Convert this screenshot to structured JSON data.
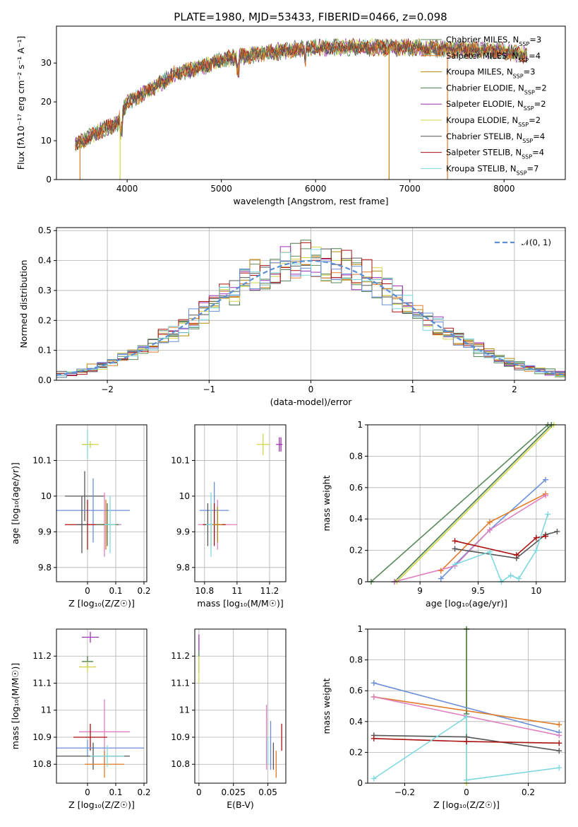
{
  "title": "PLATE=1980, MJD=53433, FIBERID=0466, z=0.098",
  "colors": [
    "#5a8a5a",
    "#e07b28",
    "#b8860b",
    "#4a7a4a",
    "#9b30b0",
    "#d4d44a",
    "#555555",
    "#aa1111",
    "#7fd8e0",
    "#6a8fd8",
    "#e080c0"
  ],
  "chart_data": [
    {
      "id": "spectrum",
      "type": "line",
      "xlabel": "wavelength [Angstrom, rest frame]",
      "ylabel": "Flux [fλ10⁻¹⁷ erg cm⁻² s⁻¹ A⁻¹]",
      "xlim": [
        3250,
        8650
      ],
      "ylim": [
        0,
        39.5
      ],
      "xticks": [
        4000,
        5000,
        6000,
        7000,
        8000
      ],
      "yticks": [
        0,
        10,
        20,
        30
      ],
      "legend_position": "upper-right",
      "legend": [
        "Chabrier MILES, N_SSP=3",
        "Salpeter MILES, N_SSP=4",
        "Kroupa MILES, N_SSP=3",
        "Chabrier ELODIE, N_SSP=2",
        "Salpeter ELODIE, N_SSP=2",
        "Kroupa ELODIE, N_SSP=2",
        "Chabrier STELIB, N_SSP=4",
        "Salpeter STELIB, N_SSP=4",
        "Kroupa STELIB, N_SSP=7"
      ],
      "continuum": [
        [
          3450,
          9
        ],
        [
          3600,
          11
        ],
        [
          3750,
          13
        ],
        [
          3900,
          14.5
        ],
        [
          4000,
          20
        ],
        [
          4100,
          21
        ],
        [
          4300,
          24
        ],
        [
          4500,
          27
        ],
        [
          4800,
          29
        ],
        [
          5000,
          31
        ],
        [
          5300,
          32
        ],
        [
          5600,
          33
        ],
        [
          6000,
          34
        ],
        [
          6500,
          34
        ],
        [
          7000,
          34
        ],
        [
          7500,
          33.5
        ],
        [
          8000,
          33
        ],
        [
          8250,
          32
        ]
      ]
    },
    {
      "id": "residuals",
      "type": "histogram",
      "xlabel": "(data-model)/error",
      "ylabel": "Normed distribution",
      "xlim": [
        -2.5,
        2.5
      ],
      "ylim": [
        0,
        0.51
      ],
      "xticks": [
        -2,
        -1,
        0,
        1,
        2
      ],
      "yticks": [
        0.0,
        0.1,
        0.2,
        0.3,
        0.4,
        0.5
      ],
      "legend": [
        "𝒩(0, 1)"
      ],
      "legend_position": "upper-right",
      "grid": true,
      "bin_width": 0.1
    },
    {
      "id": "z-age",
      "type": "errorbar",
      "xlabel": "Z [log₁₀(Z/Z☉)]",
      "ylabel": "age  [log₁₀(age/yr)]",
      "xlim": [
        -0.11,
        0.21
      ],
      "ylim": [
        9.76,
        10.2
      ],
      "xticks": [
        0.0,
        0.1,
        0.2
      ],
      "yticks": [
        9.8,
        9.9,
        10.0,
        10.1
      ],
      "grid": true,
      "points": [
        [
          0.0,
          10.145,
          0.02,
          0.04,
          8
        ],
        [
          0.01,
          10.145,
          0.03,
          0.01,
          5
        ],
        [
          -0.01,
          10.0,
          0.07,
          0.07,
          6
        ],
        [
          0.02,
          9.96,
          0.13,
          0.09,
          9
        ],
        [
          0.065,
          9.92,
          0.03,
          0.07,
          1
        ],
        [
          0.06,
          9.92,
          0.06,
          0.09,
          10
        ],
        [
          0.0,
          9.92,
          0.08,
          0.07,
          7
        ],
        [
          0.07,
          9.92,
          0.04,
          0.06,
          3
        ],
        [
          0.08,
          9.92,
          0.02,
          0.08,
          8
        ],
        [
          -0.02,
          9.92,
          0.02,
          0.08,
          6
        ]
      ]
    },
    {
      "id": "mass-age",
      "type": "errorbar",
      "xlabel": "mass [log₁₀(M/M☉)]",
      "ylabel": "",
      "xlim": [
        10.74,
        11.3
      ],
      "ylim": [
        9.76,
        10.2
      ],
      "xticks": [
        10.8,
        11.0,
        11.2
      ],
      "yticks": [
        9.8,
        9.9,
        10.0,
        10.1
      ],
      "grid": true,
      "points": [
        [
          11.16,
          10.145,
          0.04,
          0.03,
          5
        ],
        [
          11.26,
          10.145,
          0.02,
          0.02,
          4
        ],
        [
          11.27,
          10.145,
          0.0,
          0.02,
          4
        ],
        [
          10.86,
          9.96,
          0.09,
          0.08,
          9
        ],
        [
          10.88,
          9.92,
          0.12,
          0.07,
          10
        ],
        [
          10.86,
          9.92,
          0.07,
          0.06,
          7
        ],
        [
          10.84,
          9.92,
          0.04,
          0.06,
          1
        ],
        [
          10.82,
          9.92,
          0.02,
          0.06,
          6
        ],
        [
          10.84,
          9.92,
          0.03,
          0.09,
          8
        ],
        [
          10.88,
          9.92,
          0.03,
          0.05,
          2
        ]
      ]
    },
    {
      "id": "age-massweight",
      "type": "line",
      "xlabel": "age  [log₁₀(age/yr)]",
      "ylabel": "mass weight",
      "xlim": [
        8.55,
        10.25
      ],
      "ylim": [
        0,
        1
      ],
      "grid": true,
      "xticks": [
        9.0,
        9.5,
        10.0
      ],
      "yticks": [
        0.0,
        0.2,
        0.4,
        0.6,
        0.8,
        1.0
      ],
      "series": [
        {
          "color": 0,
          "points": [
            [
              8.58,
              0.0
            ],
            [
              10.1,
              1.0
            ]
          ]
        },
        {
          "color": 5,
          "points": [
            [
              8.8,
              0.0
            ],
            [
              10.15,
              1.0
            ]
          ]
        },
        {
          "color": 3,
          "points": [
            [
              8.78,
              0.0
            ],
            [
              10.13,
              1.0
            ]
          ]
        },
        {
          "color": 9,
          "points": [
            [
              9.18,
              0.02
            ],
            [
              9.6,
              0.33
            ],
            [
              10.08,
              0.65
            ]
          ]
        },
        {
          "color": 1,
          "points": [
            [
              9.18,
              0.07
            ],
            [
              9.6,
              0.38
            ],
            [
              10.08,
              0.56
            ]
          ]
        },
        {
          "color": 10,
          "points": [
            [
              8.78,
              0.0
            ],
            [
              9.3,
              0.1
            ],
            [
              9.6,
              0.33
            ],
            [
              10.08,
              0.55
            ]
          ]
        },
        {
          "color": 6,
          "points": [
            [
              9.3,
              0.21
            ],
            [
              9.83,
              0.15
            ],
            [
              10.08,
              0.3
            ],
            [
              10.18,
              0.32
            ]
          ]
        },
        {
          "color": 7,
          "points": [
            [
              9.3,
              0.26
            ],
            [
              9.83,
              0.17
            ],
            [
              10.0,
              0.28
            ],
            [
              10.08,
              0.29
            ]
          ]
        },
        {
          "color": 8,
          "points": [
            [
              9.3,
              0.11
            ],
            [
              9.6,
              0.19
            ],
            [
              9.7,
              0.0
            ],
            [
              9.78,
              0.04
            ],
            [
              9.85,
              0.02
            ],
            [
              10.0,
              0.2
            ],
            [
              10.1,
              0.43
            ]
          ]
        }
      ]
    },
    {
      "id": "z-mass",
      "type": "errorbar",
      "xlabel": "Z [log₁₀(Z/Z☉)]",
      "ylabel": "mass [log₁₀(M/M☉)]",
      "xlim": [
        -0.11,
        0.21
      ],
      "ylim": [
        10.73,
        11.3
      ],
      "xticks": [
        0.0,
        0.1,
        0.2
      ],
      "yticks": [
        10.8,
        10.9,
        11.0,
        11.1,
        11.2
      ],
      "grid": true,
      "points": [
        [
          0.01,
          11.27,
          0.03,
          0.02,
          4
        ],
        [
          0.0,
          11.18,
          0.02,
          0.02,
          3
        ],
        [
          0.0,
          11.16,
          0.03,
          0.02,
          5
        ],
        [
          0.06,
          10.92,
          0.09,
          0.12,
          10
        ],
        [
          0.01,
          10.9,
          0.06,
          0.05,
          7
        ],
        [
          0.0,
          10.86,
          0.2,
          0.03,
          9
        ],
        [
          0.02,
          10.83,
          0.13,
          0.05,
          6
        ],
        [
          0.06,
          10.8,
          0.07,
          0.05,
          1
        ],
        [
          0.07,
          10.83,
          0.06,
          0.04,
          8
        ]
      ]
    },
    {
      "id": "ebv-mass",
      "type": "errorbar",
      "xlabel": "E(B-V)",
      "ylabel": "",
      "xlim": [
        -0.003,
        0.063
      ],
      "ylim": [
        10.73,
        11.3
      ],
      "xticks": [
        0.0,
        0.025,
        0.05
      ],
      "yticks": [
        10.8,
        10.9,
        11.0,
        11.1,
        11.2
      ],
      "grid": true,
      "points": [
        [
          0.0,
          11.25,
          0.0,
          0.03,
          4
        ],
        [
          0.0,
          11.18,
          0.0,
          0.04,
          3
        ],
        [
          0.0,
          11.15,
          0.0,
          0.05,
          5
        ],
        [
          0.049,
          10.9,
          0.0,
          0.12,
          10
        ],
        [
          0.052,
          10.87,
          0.0,
          0.09,
          9
        ],
        [
          0.054,
          10.83,
          0.0,
          0.05,
          6
        ],
        [
          0.056,
          10.8,
          0.0,
          0.05,
          1
        ],
        [
          0.06,
          10.9,
          0.0,
          0.05,
          7
        ],
        [
          0.05,
          10.85,
          0.0,
          0.05,
          8
        ]
      ]
    },
    {
      "id": "z-massweight",
      "type": "line",
      "xlabel": "Z [log₁₀(Z/Z☉)]",
      "ylabel": "mass weight",
      "xlim": [
        -0.32,
        0.32
      ],
      "ylim": [
        0,
        1
      ],
      "grid": true,
      "xticks": [
        -0.2,
        0.0,
        0.2
      ],
      "yticks": [
        0.0,
        0.2,
        0.4,
        0.6,
        0.8,
        1.0
      ],
      "series": [
        {
          "color": 5,
          "points": [
            [
              0.0,
              0.0
            ],
            [
              0.0,
              1.0
            ]
          ]
        },
        {
          "color": 3,
          "points": [
            [
              0.0,
              0.45
            ],
            [
              0.0,
              1.0
            ]
          ]
        },
        {
          "color": 9,
          "points": [
            [
              -0.3,
              0.65
            ],
            [
              0.3,
              0.33
            ]
          ]
        },
        {
          "color": 1,
          "points": [
            [
              -0.3,
              0.56
            ],
            [
              0.3,
              0.38
            ]
          ]
        },
        {
          "color": 10,
          "points": [
            [
              -0.3,
              0.56
            ],
            [
              0.3,
              0.31
            ]
          ]
        },
        {
          "color": 6,
          "points": [
            [
              -0.3,
              0.31
            ],
            [
              0.0,
              0.3
            ],
            [
              0.3,
              0.21
            ]
          ]
        },
        {
          "color": 7,
          "points": [
            [
              -0.3,
              0.29
            ],
            [
              0.0,
              0.27
            ],
            [
              0.3,
              0.26
            ]
          ]
        },
        {
          "color": 8,
          "points": [
            [
              -0.3,
              0.03
            ],
            [
              0.0,
              0.43
            ],
            [
              0.0,
              0.02
            ],
            [
              0.3,
              0.1
            ]
          ]
        }
      ]
    }
  ]
}
